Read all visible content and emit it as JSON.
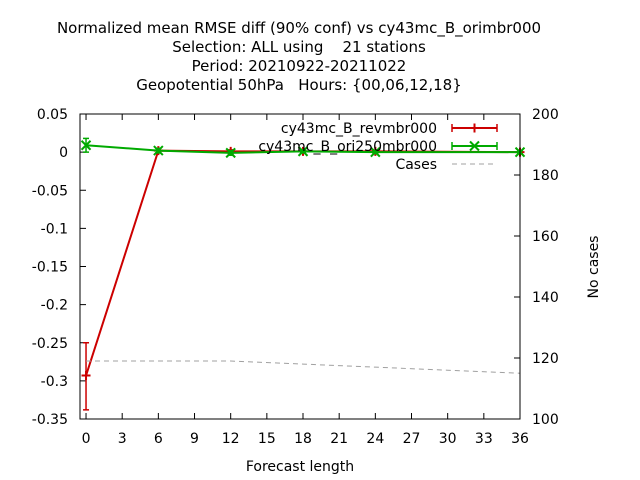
{
  "chart_data": {
    "type": "line",
    "title_lines": [
      "Normalized mean RMSE diff (90% conf) vs cy43mc_B_orimbr000",
      "Selection: ALL using    21 stations",
      "Period: 20210922-20211022",
      "Geopotential 50hPa   Hours: {00,06,12,18}"
    ],
    "xlabel": "Forecast length",
    "ylabel": "",
    "y2label": "No cases",
    "xlim": [
      -0.5,
      36
    ],
    "ylim": [
      -0.35,
      0.05
    ],
    "y2lim": [
      100,
      200
    ],
    "x_ticks": [
      "0",
      "3",
      "6",
      "9",
      "12",
      "15",
      "18",
      "21",
      "24",
      "27",
      "30",
      "33",
      "36"
    ],
    "y_ticks": [
      "0.05",
      "0",
      "-0.05",
      "-0.1",
      "-0.15",
      "-0.2",
      "-0.25",
      "-0.3",
      "-0.35"
    ],
    "y2_ticks": [
      "200",
      "180",
      "160",
      "140",
      "120",
      "100"
    ],
    "legend_position": "top-right",
    "series": [
      {
        "name": "cy43mc_B_revmbr000",
        "color": "#cc0000",
        "marker": "plus",
        "points": [
          {
            "x": 0,
            "y": -0.293,
            "lo": -0.338,
            "hi": -0.25
          },
          {
            "x": 6,
            "y": 0.002,
            "lo": -0.001,
            "hi": 0.005
          },
          {
            "x": 12,
            "y": 0.001,
            "lo": -0.002,
            "hi": 0.003
          },
          {
            "x": 18,
            "y": 0.001,
            "lo": -0.001,
            "hi": 0.003
          },
          {
            "x": 24,
            "y": 0.001,
            "lo": -0.001,
            "hi": 0.002
          },
          {
            "x": 36,
            "y": 0.0,
            "lo": -0.002,
            "hi": 0.002
          }
        ]
      },
      {
        "name": "cy43mc_B_ori250mbr000",
        "color": "#00aa00",
        "marker": "x",
        "points": [
          {
            "x": 0,
            "y": 0.009,
            "lo": 0.0,
            "hi": 0.018
          },
          {
            "x": 6,
            "y": 0.002,
            "lo": -0.001,
            "hi": 0.005
          },
          {
            "x": 12,
            "y": -0.001,
            "lo": -0.004,
            "hi": 0.002
          },
          {
            "x": 18,
            "y": 0.001,
            "lo": -0.001,
            "hi": 0.003
          },
          {
            "x": 24,
            "y": 0.0,
            "lo": -0.002,
            "hi": 0.002
          },
          {
            "x": 36,
            "y": 0.0,
            "lo": -0.002,
            "hi": 0.002
          }
        ]
      },
      {
        "name": "Cases",
        "color": "#a0a0a0",
        "axis": "y2",
        "dashed": true,
        "x": [
          0,
          6,
          12,
          18,
          24,
          30,
          36
        ],
        "y": [
          119,
          119,
          119,
          118,
          117,
          116,
          115
        ]
      }
    ]
  }
}
